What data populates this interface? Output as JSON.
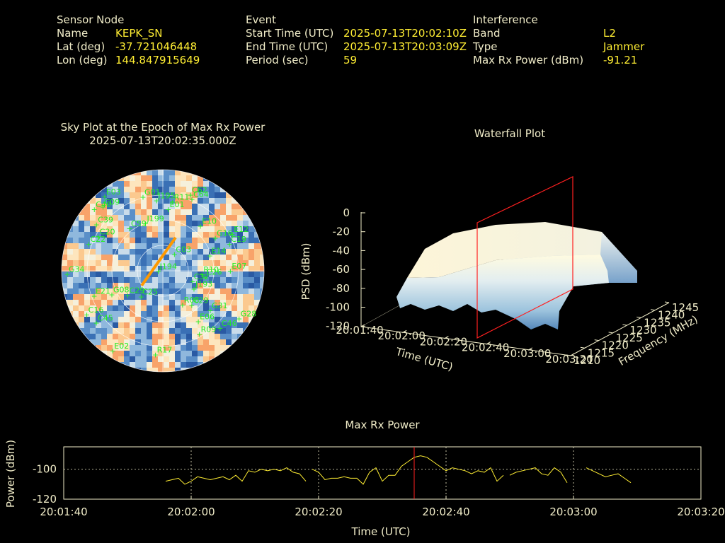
{
  "header": {
    "sensor": {
      "heading": "Sensor Node",
      "rows": [
        {
          "label": "Name",
          "value": "KEPK_SN"
        },
        {
          "label": "Lat (deg)",
          "value": "-37.721046448"
        },
        {
          "label": "Lon (deg)",
          "value": "144.847915649"
        }
      ]
    },
    "event": {
      "heading": "Event",
      "rows": [
        {
          "label": "Start Time (UTC)",
          "value": "2025-07-13T20:02:10Z"
        },
        {
          "label": "End Time (UTC)",
          "value": "2025-07-13T20:03:09Z"
        },
        {
          "label": "Period (sec)",
          "value": "59"
        }
      ]
    },
    "interference": {
      "heading": "Interference",
      "rows": [
        {
          "label": "Band",
          "value": "L2"
        },
        {
          "label": "Type",
          "value": "Jammer"
        },
        {
          "label": "Max Rx Power (dBm)",
          "value": "-91.21"
        }
      ]
    }
  },
  "sky_plot": {
    "title": "Sky Plot at the Epoch of Max Rx Power",
    "subtitle": "2025-07-13T20:02:35.000Z",
    "satellites": [
      {
        "id": "E03",
        "az": 322,
        "el": 6
      },
      {
        "id": "C40",
        "az": 312,
        "el": 8
      },
      {
        "id": "C09",
        "az": 317,
        "el": 12
      },
      {
        "id": "G01",
        "az": 345,
        "el": 22
      },
      {
        "id": "J195",
        "az": 355,
        "el": 27
      },
      {
        "id": "R11",
        "az": 8,
        "el": 28
      },
      {
        "id": "C62",
        "az": 20,
        "el": 18
      },
      {
        "id": "C64",
        "az": 22,
        "el": 21
      },
      {
        "id": "E01",
        "az": 5,
        "el": 35
      },
      {
        "id": "C39",
        "az": 305,
        "el": 18
      },
      {
        "id": "C59",
        "az": 322,
        "el": 42
      },
      {
        "id": "J199",
        "az": 340,
        "el": 45
      },
      {
        "id": "E10",
        "az": 40,
        "el": 38
      },
      {
        "id": "G16",
        "az": 58,
        "el": 35
      },
      {
        "id": "E12",
        "az": 62,
        "el": 20
      },
      {
        "id": "C19",
        "az": 68,
        "el": 26
      },
      {
        "id": "C20",
        "az": 298,
        "el": 25
      },
      {
        "id": "C22",
        "az": 290,
        "el": 20
      },
      {
        "id": "E14",
        "az": 72,
        "el": 46
      },
      {
        "id": "C03",
        "az": 35,
        "el": 72
      },
      {
        "id": "J194",
        "az": 265,
        "el": 86
      },
      {
        "id": "R10",
        "az": 95,
        "el": 55
      },
      {
        "id": "E07",
        "az": 90,
        "el": 30
      },
      {
        "id": "C26",
        "az": 98,
        "el": 52
      },
      {
        "id": "C32",
        "az": 110,
        "el": 62
      },
      {
        "id": "J193",
        "az": 120,
        "el": 58
      },
      {
        "id": "G34",
        "az": 268,
        "el": 5
      },
      {
        "id": "G08",
        "az": 245,
        "el": 40
      },
      {
        "id": "E21",
        "az": 250,
        "el": 25
      },
      {
        "id": "C25",
        "az": 220,
        "el": 60
      },
      {
        "id": "C29",
        "az": 235,
        "el": 52
      },
      {
        "id": "R08",
        "az": 150,
        "el": 55
      },
      {
        "id": "C29",
        "az": 140,
        "el": 50
      },
      {
        "id": "G31",
        "az": 130,
        "el": 35
      },
      {
        "id": "E06",
        "az": 145,
        "el": 35
      },
      {
        "id": "R09",
        "az": 150,
        "el": 25
      },
      {
        "id": "C46",
        "az": 135,
        "el": 18
      },
      {
        "id": "G28",
        "az": 122,
        "el": 10
      },
      {
        "id": "C16",
        "az": 240,
        "el": 12
      },
      {
        "id": "C45",
        "az": 232,
        "el": 15
      },
      {
        "id": "E02",
        "az": 212,
        "el": 6
      },
      {
        "id": "R17",
        "az": 185,
        "el": 15
      }
    ]
  },
  "waterfall": {
    "title": "Waterfall Plot",
    "zlabel": "PSD (dBm)",
    "xlabel": "Time (UTC)",
    "ylabel": "Frequency (MHz)",
    "z_ticks": [
      "0",
      "-20",
      "-40",
      "-60",
      "-80",
      "-100",
      "-120"
    ],
    "time_ticks": [
      "20:01:40",
      "20:02:00",
      "20:02:20",
      "20:02:40",
      "20:03:00",
      "20:03:20"
    ],
    "freq_ticks": [
      "1210",
      "1215",
      "1220",
      "1225",
      "1230",
      "1235",
      "1240",
      "1245"
    ]
  },
  "chart_data": {
    "type": "line",
    "title": "Max Rx Power",
    "xlabel": "Time (UTC)",
    "ylabel": "Power (dBm)",
    "xlim": [
      "20:01:40",
      "20:03:20"
    ],
    "ylim": [
      -120,
      -85
    ],
    "x_ticks": [
      "20:01:40",
      "20:02:00",
      "20:02:20",
      "20:02:40",
      "20:03:00",
      "20:03:20"
    ],
    "y_ticks": [
      -100,
      -120
    ],
    "grid": true,
    "marker_time": "20:02:35",
    "series_color": "#ffee33",
    "marker_color": "#ff2020",
    "segments": [
      {
        "x": [
          "20:01:56",
          "20:01:57",
          "20:01:58",
          "20:01:59",
          "20:02:00",
          "20:02:01",
          "20:02:02",
          "20:02:03",
          "20:02:04",
          "20:02:05",
          "20:02:06",
          "20:02:07",
          "20:02:08",
          "20:02:09",
          "20:02:10",
          "20:02:11",
          "20:02:12",
          "20:02:13",
          "20:02:14",
          "20:02:15",
          "20:02:16",
          "20:02:17",
          "20:02:18"
        ],
        "y": [
          -108,
          -107,
          -106,
          -110,
          -108,
          -105,
          -106,
          -107,
          -106,
          -105,
          -107,
          -104,
          -108,
          -101,
          -102,
          -100,
          -101,
          -100,
          -101,
          -99,
          -102,
          -103,
          -108
        ]
      },
      {
        "x": [
          "20:02:19",
          "20:02:20",
          "20:02:21",
          "20:02:22",
          "20:02:23",
          "20:02:24",
          "20:02:25",
          "20:02:26",
          "20:02:27",
          "20:02:28",
          "20:02:29",
          "20:02:30",
          "20:02:31",
          "20:02:32",
          "20:02:33",
          "20:02:34",
          "20:02:35",
          "20:02:36",
          "20:02:37",
          "20:02:38",
          "20:02:39",
          "20:02:40",
          "20:02:41",
          "20:02:42",
          "20:02:43",
          "20:02:44",
          "20:02:45",
          "20:02:46",
          "20:02:47",
          "20:02:48",
          "20:02:49"
        ],
        "y": [
          -100,
          -102,
          -107,
          -106,
          -106,
          -105,
          -106,
          -106,
          -110,
          -102,
          -99,
          -108,
          -104,
          -104,
          -98,
          -95,
          -92,
          -91,
          -92,
          -95,
          -98,
          -101,
          -99,
          -100,
          -101,
          -103,
          -101,
          -102,
          -99,
          -108,
          -104
        ]
      },
      {
        "x": [
          "20:02:50",
          "20:02:51",
          "20:02:52",
          "20:02:53",
          "20:02:54",
          "20:02:55",
          "20:02:56",
          "20:02:57",
          "20:02:58",
          "20:02:59"
        ],
        "y": [
          -104,
          -102,
          -101,
          -100,
          -99,
          -103,
          -104,
          -99,
          -102,
          -109
        ]
      },
      {
        "x": [
          "20:03:02",
          "20:03:03",
          "20:03:04",
          "20:03:05",
          "20:03:06",
          "20:03:07",
          "20:03:08",
          "20:03:09"
        ],
        "y": [
          -99,
          -101,
          -103,
          -105,
          -104,
          -103,
          -106,
          -109
        ]
      }
    ]
  }
}
